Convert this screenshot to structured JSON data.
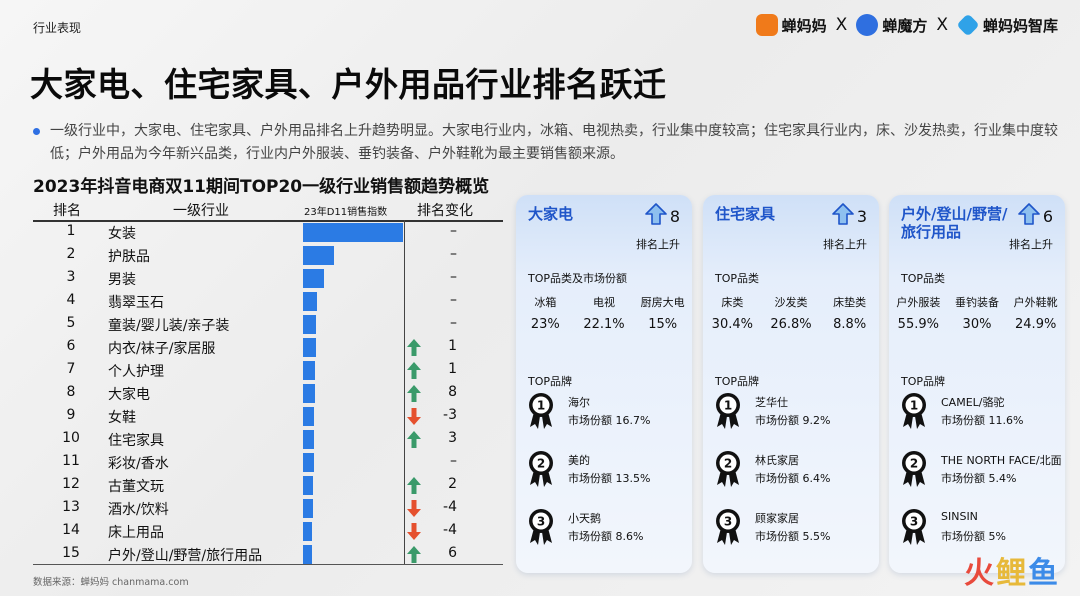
{
  "header": {
    "section": "行业表现",
    "logos": [
      {
        "name": "蝉妈妈",
        "color": "#f07a1a"
      },
      {
        "name": "蝉魔方",
        "color": "#2f6fe0"
      },
      {
        "name": "蝉妈妈智库",
        "color": "#2fa2e8"
      }
    ],
    "separator": "X"
  },
  "title": "大家电、住宅家具、户外用品行业排名跃迁",
  "bullet": "一级行业中，大家电、住宅家具、户外用品排名上升趋势明显。大家电行业内，冰箱、电视热卖，行业集中度较高；住宅家具行业内，床、沙发热卖，行业集中度较低；户外用品为今年新兴品类，行业内户外服装、垂钓装备、户外鞋靴为最主要销售额来源。",
  "chart_data": {
    "type": "table",
    "title": "2023年抖音电商双11期间TOP20一级行业销售额趋势概览",
    "columns": [
      "排名",
      "一级行业",
      "23年D11销售指数",
      "排名变化"
    ],
    "rows": [
      {
        "rank": "1",
        "category": "女装",
        "index": 100,
        "direction": "none",
        "change": "–"
      },
      {
        "rank": "2",
        "category": "护肤品",
        "index": 31,
        "direction": "none",
        "change": "–"
      },
      {
        "rank": "3",
        "category": "男装",
        "index": 21,
        "direction": "none",
        "change": "–"
      },
      {
        "rank": "4",
        "category": "翡翠玉石",
        "index": 14,
        "direction": "none",
        "change": "–"
      },
      {
        "rank": "5",
        "category": "童装/婴儿装/亲子装",
        "index": 13,
        "direction": "none",
        "change": "–"
      },
      {
        "rank": "6",
        "category": "内衣/袜子/家居服",
        "index": 13,
        "direction": "up",
        "change": "1"
      },
      {
        "rank": "7",
        "category": "个人护理",
        "index": 12,
        "direction": "up",
        "change": "1"
      },
      {
        "rank": "8",
        "category": "大家电",
        "index": 12,
        "direction": "up",
        "change": "8"
      },
      {
        "rank": "9",
        "category": "女鞋",
        "index": 11,
        "direction": "down",
        "change": "-3"
      },
      {
        "rank": "10",
        "category": "住宅家具",
        "index": 11,
        "direction": "up",
        "change": "3"
      },
      {
        "rank": "11",
        "category": "彩妆/香水",
        "index": 11,
        "direction": "none",
        "change": "–"
      },
      {
        "rank": "12",
        "category": "古董文玩",
        "index": 10,
        "direction": "up",
        "change": "2"
      },
      {
        "rank": "13",
        "category": "酒水/饮料",
        "index": 10,
        "direction": "down",
        "change": "-4"
      },
      {
        "rank": "14",
        "category": "床上用品",
        "index": 9,
        "direction": "down",
        "change": "-4"
      },
      {
        "rank": "15",
        "category": "户外/登山/野营/旅行用品",
        "index": 9,
        "direction": "up",
        "change": "6"
      }
    ],
    "bar_color": "#2b7be4"
  },
  "cards": [
    {
      "title": "大家电",
      "rank_up": "8",
      "rank_up_label": "排名上升",
      "category_label": "TOP品类及市场份额",
      "categories": [
        {
          "name": "冰箱",
          "share": "23%"
        },
        {
          "name": "电视",
          "share": "22.1%"
        },
        {
          "name": "厨房大电",
          "share": "15%"
        }
      ],
      "brand_label": "TOP品牌",
      "brands": [
        {
          "rank": "1",
          "name": "海尔",
          "share": "市场份额 16.7%"
        },
        {
          "rank": "2",
          "name": "美的",
          "share": "市场份额 13.5%"
        },
        {
          "rank": "3",
          "name": "小天鹅",
          "share": "市场份额 8.6%"
        }
      ]
    },
    {
      "title": "住宅家具",
      "rank_up": "3",
      "rank_up_label": "排名上升",
      "category_label": "TOP品类",
      "categories": [
        {
          "name": "床类",
          "share": "30.4%"
        },
        {
          "name": "沙发类",
          "share": "26.8%"
        },
        {
          "name": "床垫类",
          "share": "8.8%"
        }
      ],
      "brand_label": "TOP品牌",
      "brands": [
        {
          "rank": "1",
          "name": "芝华仕",
          "share": "市场份额 9.2%"
        },
        {
          "rank": "2",
          "name": "林氏家居",
          "share": "市场份额 6.4%"
        },
        {
          "rank": "3",
          "name": "顾家家居",
          "share": "市场份额 5.5%"
        }
      ]
    },
    {
      "title": "户外/登山/野营/旅行用品",
      "rank_up": "6",
      "rank_up_label": "排名上升",
      "category_label": "TOP品类",
      "categories": [
        {
          "name": "户外服装",
          "share": "55.9%"
        },
        {
          "name": "垂钓装备",
          "share": "30%"
        },
        {
          "name": "户外鞋靴",
          "share": "24.9%"
        }
      ],
      "brand_label": "TOP品牌",
      "brands": [
        {
          "rank": "1",
          "name": "CAMEL/骆驼",
          "share": "市场份额 11.6%"
        },
        {
          "rank": "2",
          "name": "THE NORTH FACE/北面",
          "share": "市场份额 5.4%"
        },
        {
          "rank": "3",
          "name": "SINSIN",
          "share": "市场份额 5%"
        }
      ]
    }
  ],
  "footer": {
    "source": "数据来源：蝉妈妈 chanmama.com",
    "watermark": [
      "火",
      "鲤",
      "鱼"
    ]
  },
  "colors": {
    "accent": "#1f55c9",
    "up": "#3a9a6a",
    "down": "#e5502e"
  }
}
